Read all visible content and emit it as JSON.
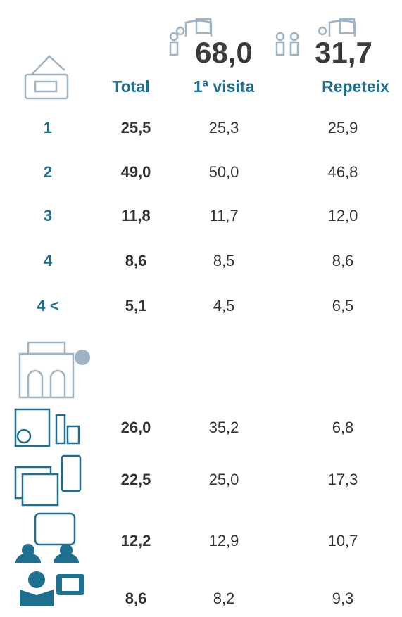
{
  "header": {
    "first_visit_share": "68,0",
    "repeat_share": "31,7",
    "columns": [
      "Total",
      "1ª visita",
      "Repeteix"
    ]
  },
  "nights_table": {
    "rows": [
      [
        "1",
        "25,5",
        "25,3",
        "25,9"
      ],
      [
        "2",
        "49,0",
        "50,0",
        "46,8"
      ],
      [
        "3",
        "11,8",
        "11,7",
        "12,0"
      ],
      [
        "4",
        "8,6",
        "8,5",
        "8,6"
      ],
      [
        "4 <",
        "5,1",
        "4,5",
        "6,5"
      ]
    ]
  },
  "info_table": {
    "rows": [
      [
        "26,0",
        "35,2",
        "6,8"
      ],
      [
        "22,5",
        "25,0",
        "17,3"
      ],
      [
        "12,2",
        "12,9",
        "10,7"
      ],
      [
        "8,6",
        "8,2",
        "9,3"
      ]
    ]
  }
}
